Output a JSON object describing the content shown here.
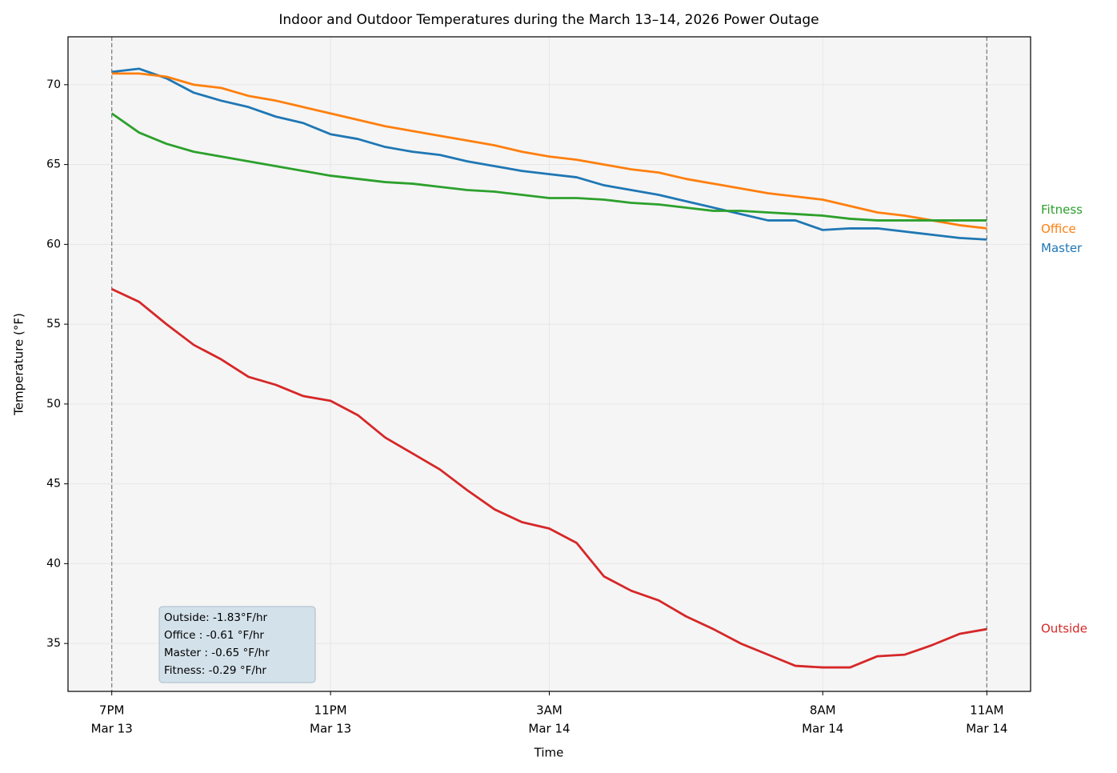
{
  "chart_data": {
    "type": "line",
    "title": "Indoor and Outdoor Temperatures during the March 13–14, 2026 Power Outage",
    "xlabel": "Time",
    "ylabel": "Temperature (°F)",
    "x": [
      0,
      0.5,
      1,
      1.5,
      2,
      2.5,
      3,
      3.5,
      4,
      4.5,
      5,
      5.5,
      6,
      6.5,
      7,
      7.5,
      8,
      8.5,
      9,
      9.5,
      10,
      10.5,
      11,
      11.5,
      12,
      12.5,
      13,
      13.5,
      14,
      14.5,
      15,
      15.5,
      16
    ],
    "series": [
      {
        "name": "Master",
        "color": "#1f77b4",
        "values": [
          70.8,
          71.0,
          70.4,
          69.5,
          69.0,
          68.6,
          68.0,
          67.6,
          66.9,
          66.6,
          66.1,
          65.8,
          65.6,
          65.2,
          64.9,
          64.6,
          64.4,
          64.2,
          63.7,
          63.4,
          63.1,
          62.7,
          62.3,
          61.9,
          61.5,
          61.5,
          60.9,
          61.0,
          61.0,
          60.8,
          60.6,
          60.4,
          60.3
        ]
      },
      {
        "name": "Office",
        "color": "#ff7f0e",
        "values": [
          70.7,
          70.7,
          70.5,
          70.0,
          69.8,
          69.3,
          69.0,
          68.6,
          68.2,
          67.8,
          67.4,
          67.1,
          66.8,
          66.5,
          66.2,
          65.8,
          65.5,
          65.3,
          65.0,
          64.7,
          64.5,
          64.1,
          63.8,
          63.5,
          63.2,
          63.0,
          62.8,
          62.4,
          62.0,
          61.8,
          61.5,
          61.2,
          61.0
        ]
      },
      {
        "name": "Fitness",
        "color": "#2ca02c",
        "values": [
          68.2,
          67.0,
          66.3,
          65.8,
          65.5,
          65.2,
          64.9,
          64.6,
          64.3,
          64.1,
          63.9,
          63.8,
          63.6,
          63.4,
          63.3,
          63.1,
          62.9,
          62.9,
          62.8,
          62.6,
          62.5,
          62.3,
          62.1,
          62.1,
          62.0,
          61.9,
          61.8,
          61.6,
          61.5,
          61.5,
          61.5,
          61.5,
          61.5
        ]
      },
      {
        "name": "Outside",
        "color": "#d62728",
        "values": [
          57.2,
          56.4,
          55.0,
          53.7,
          52.8,
          51.7,
          51.2,
          50.5,
          50.2,
          49.3,
          47.9,
          46.9,
          45.9,
          44.6,
          43.4,
          42.6,
          42.2,
          41.3,
          39.2,
          38.3,
          37.7,
          36.7,
          35.9,
          35.0,
          34.3,
          33.6,
          33.5,
          33.5,
          34.2,
          34.3,
          34.9,
          35.6,
          35.9
        ]
      }
    ],
    "xlim": [
      -0.8,
      16.8
    ],
    "ylim": [
      32.0,
      73.0
    ],
    "xticks": [
      {
        "value": 0,
        "label": [
          "7PM",
          "Mar 13"
        ]
      },
      {
        "value": 4,
        "label": [
          "11PM",
          "Mar 13"
        ]
      },
      {
        "value": 8,
        "label": [
          "3AM",
          "Mar 14"
        ]
      },
      {
        "value": 13,
        "label": [
          "8AM",
          "Mar 14"
        ]
      },
      {
        "value": 16,
        "label": [
          "11AM",
          "Mar 14"
        ]
      }
    ],
    "yticks": [
      35,
      40,
      45,
      50,
      55,
      60,
      65,
      70
    ],
    "vlines": [
      0,
      16
    ],
    "grid": true,
    "annotation": [
      "Outside: -1.83°F/hr",
      "Office : -0.61 °F/hr",
      "Master : -0.65 °F/hr",
      "Fitness: -0.29 °F/hr"
    ]
  }
}
